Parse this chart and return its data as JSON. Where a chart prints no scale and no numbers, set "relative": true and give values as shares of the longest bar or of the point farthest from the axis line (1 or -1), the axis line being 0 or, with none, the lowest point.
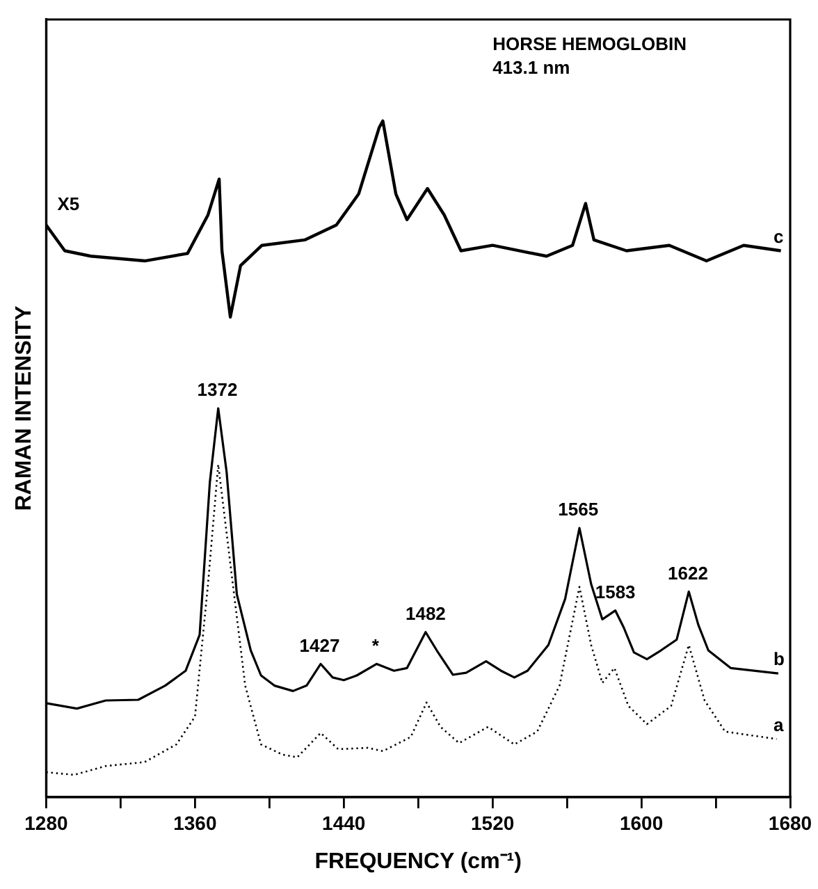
{
  "chart_data": {
    "type": "line",
    "relative": true,
    "xlabel": "FREQUENCY (cm⁻¹)",
    "ylabel": "RAMAN INTENSITY",
    "xlim": [
      1280,
      1680
    ],
    "xticks": [
      1280,
      {
        "value": 1320,
        "label": null
      },
      1360,
      {
        "value": 1400,
        "label": null
      },
      1440,
      {
        "value": 1480,
        "label": null
      },
      1520,
      {
        "value": 1560,
        "label": null
      },
      1600,
      {
        "value": 1640,
        "label": null
      },
      1680
    ],
    "grid": false,
    "legend": false,
    "marker": "none",
    "annotations": [
      "X5",
      "HORSE HEMOGLOBIN",
      "413.1 nm",
      {
        "text": "1372",
        "x": 1372,
        "y": 0.575
      },
      {
        "text": "1427",
        "x": 1427,
        "y": 0.197
      },
      {
        "text": "*",
        "x": 1457,
        "y": 0.197
      },
      {
        "text": "1482",
        "x": 1484,
        "y": 0.244
      },
      {
        "text": "1565",
        "x": 1566,
        "y": 0.398
      },
      {
        "text": "1583",
        "x": 1586,
        "y": 0.276
      },
      {
        "text": "1622",
        "x": 1625,
        "y": 0.304
      }
    ],
    "series": [
      {
        "name": "c",
        "color": "#000000",
        "line_style": "solid",
        "x": [
          1280,
          1290,
          1304,
          1333,
          1356,
          1367,
          1373,
          1374.5,
          1379,
          1384.5,
          1396,
          1419,
          1436,
          1448,
          1459,
          1461,
          1468,
          1474,
          1485,
          1494,
          1503,
          1520,
          1549,
          1563,
          1570,
          1574.5,
          1592,
          1615,
          1635,
          1655,
          1675
        ],
        "values": [
          0.846,
          0.808,
          0.8,
          0.793,
          0.804,
          0.861,
          0.914,
          0.808,
          0.71,
          0.786,
          0.816,
          0.824,
          0.846,
          0.892,
          0.99,
          1,
          0.892,
          0.854,
          0.9,
          0.861,
          0.808,
          0.816,
          0.8,
          0.816,
          0.878,
          0.824,
          0.808,
          0.816,
          0.793,
          0.816,
          0.808
        ]
      },
      {
        "name": "b",
        "color": "#000000",
        "line_style": "solid",
        "x": [
          1280,
          1296.5,
          1312,
          1329.5,
          1344,
          1355,
          1362.5,
          1368,
          1372.5,
          1377,
          1382.5,
          1390,
          1395.5,
          1402.7,
          1412.7,
          1420,
          1427.6,
          1434,
          1440,
          1447,
          1457.7,
          1467,
          1474,
          1484,
          1490,
          1498.7,
          1505.8,
          1516.5,
          1524.5,
          1531.7,
          1538.8,
          1550,
          1559,
          1566.7,
          1573,
          1579,
          1586,
          1590.5,
          1596,
          1603,
          1610.5,
          1619,
          1625.5,
          1630.6,
          1636,
          1648,
          1673.6
        ],
        "values": [
          0.139,
          0.131,
          0.143,
          0.144,
          0.165,
          0.187,
          0.24,
          0.466,
          0.575,
          0.481,
          0.3,
          0.217,
          0.18,
          0.165,
          0.157,
          0.165,
          0.197,
          0.177,
          0.173,
          0.18,
          0.197,
          0.187,
          0.191,
          0.244,
          0.217,
          0.181,
          0.184,
          0.201,
          0.187,
          0.177,
          0.187,
          0.225,
          0.293,
          0.398,
          0.315,
          0.263,
          0.276,
          0.251,
          0.214,
          0.204,
          0.217,
          0.233,
          0.304,
          0.255,
          0.217,
          0.191,
          0.183
        ]
      },
      {
        "name": "a",
        "color": "#000000",
        "line_style": "dotted",
        "x": [
          1280,
          1295,
          1312,
          1333,
          1350,
          1360,
          1367,
          1372.5,
          1378,
          1387,
          1395.5,
          1407,
          1415,
          1427.6,
          1437,
          1453,
          1461,
          1476,
          1484.5,
          1492,
          1502,
          1517.6,
          1531.7,
          1544,
          1556,
          1566.7,
          1573,
          1579,
          1585.5,
          1593,
          1603,
          1616,
          1625.5,
          1634,
          1645,
          1672.7
        ],
        "values": [
          0.037,
          0.033,
          0.046,
          0.052,
          0.078,
          0.119,
          0.315,
          0.492,
          0.368,
          0.165,
          0.078,
          0.063,
          0.059,
          0.095,
          0.071,
          0.073,
          0.068,
          0.089,
          0.14,
          0.104,
          0.08,
          0.104,
          0.078,
          0.097,
          0.165,
          0.311,
          0.225,
          0.169,
          0.191,
          0.135,
          0.108,
          0.135,
          0.225,
          0.143,
          0.097,
          0.086
        ]
      }
    ]
  }
}
